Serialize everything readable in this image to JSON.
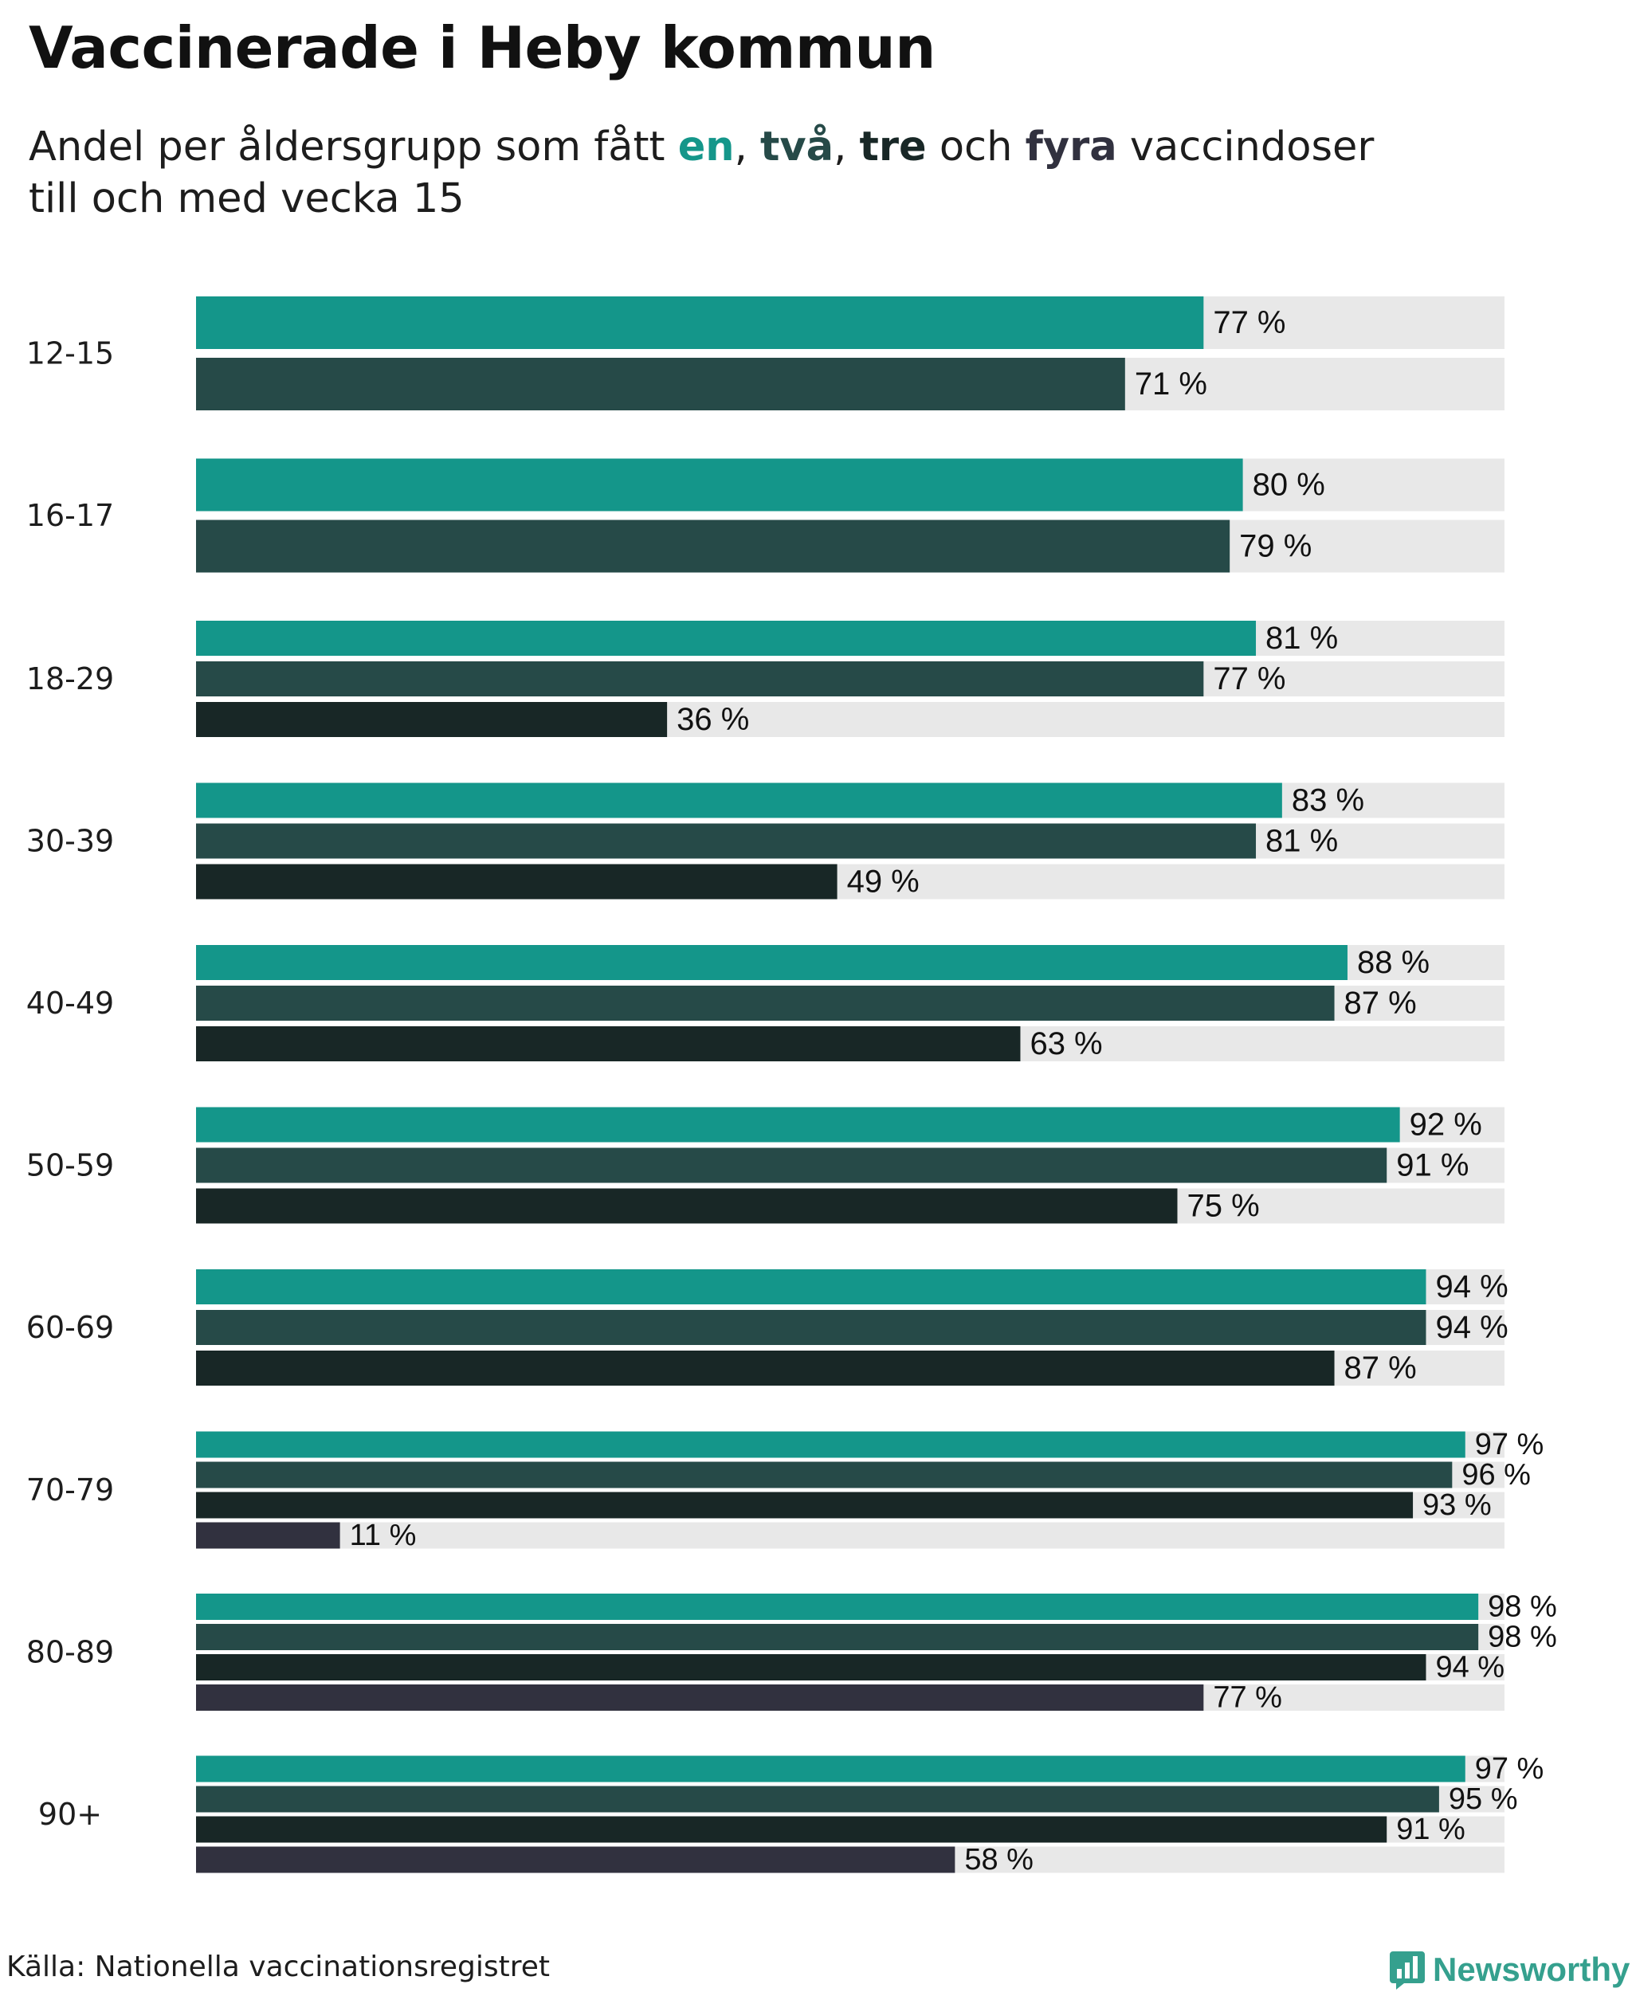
{
  "title": "Vaccinerade i Heby kommun",
  "subtitle": {
    "prefix": "Andel per åldersgrupp som fått",
    "dose1": "en",
    "sep1": ",",
    "dose2": "två",
    "sep2": ",",
    "dose3": "tre",
    "conj": "och",
    "dose4": "fyra",
    "suffix": "vaccindoser",
    "line2": "till och med vecka 15"
  },
  "source": "Källa: Nationella vaccinationsregistret",
  "brand": "Newsworthy",
  "colors": {
    "dose1": "#14968a",
    "dose2": "#264a48",
    "dose3": "#182726",
    "dose4": "#31313f",
    "track": "#e8e8e8",
    "brand": "#35a08e"
  },
  "chart_data": {
    "type": "bar",
    "orientation": "horizontal",
    "title": "Vaccinerade i Heby kommun",
    "xlim": [
      0,
      100
    ],
    "unit": "%",
    "categories": [
      "12-15",
      "16-17",
      "18-29",
      "30-39",
      "40-49",
      "50-59",
      "60-69",
      "70-79",
      "80-89",
      "90+"
    ],
    "series": [
      {
        "name": "en",
        "values": [
          77,
          80,
          81,
          83,
          88,
          92,
          94,
          97,
          98,
          97
        ]
      },
      {
        "name": "två",
        "values": [
          71,
          79,
          77,
          81,
          87,
          91,
          94,
          96,
          98,
          95
        ]
      },
      {
        "name": "tre",
        "values": [
          null,
          null,
          36,
          49,
          63,
          75,
          87,
          93,
          94,
          91
        ]
      },
      {
        "name": "fyra",
        "values": [
          null,
          null,
          null,
          null,
          null,
          null,
          null,
          11,
          77,
          58
        ]
      }
    ],
    "value_labels": [
      [
        "77 %",
        "71 %"
      ],
      [
        "80 %",
        "79 %"
      ],
      [
        "81 %",
        "77 %",
        "36 %"
      ],
      [
        "83 %",
        "81 %",
        "49 %"
      ],
      [
        "88 %",
        "87 %",
        "63 %"
      ],
      [
        "92 %",
        "91 %",
        "75 %"
      ],
      [
        "94 %",
        "94 %",
        "87 %"
      ],
      [
        "97 %",
        "96 %",
        "93 %",
        "11 %"
      ],
      [
        "98 %",
        "98 %",
        "94 %",
        "77 %"
      ],
      [
        "97 %",
        "95 %",
        "91 %",
        "58 %"
      ]
    ]
  }
}
